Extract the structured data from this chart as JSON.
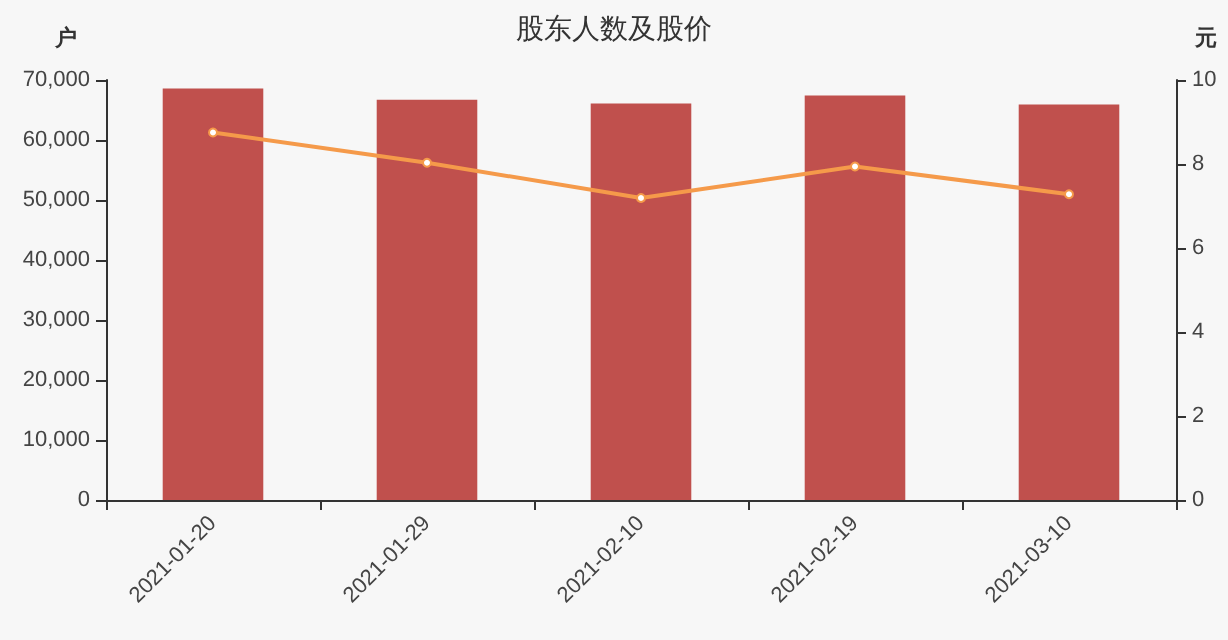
{
  "chart_data": {
    "type": "bar",
    "title": "股东人数及股价",
    "ylabel": "户",
    "y2label": "元",
    "categories": [
      "2021-01-20",
      "2021-01-29",
      "2021-02-10",
      "2021-02-19",
      "2021-03-10"
    ],
    "series": [
      {
        "color": "#c0504d",
        "values": [
          68600,
          66700,
          66100,
          67400,
          65900
        ]
      },
      {
        "type": "line",
        "axis": "y2",
        "color": "#f59a4a",
        "values": [
          8.75,
          8.03,
          7.19,
          7.94,
          7.28
        ]
      }
    ],
    "ylim": [
      0,
      70000
    ],
    "yticks": [
      0,
      {
        "value": 10000,
        "label": "10,000"
      },
      {
        "value": 20000,
        "label": "20,000"
      },
      {
        "value": 30000,
        "label": "30,000"
      },
      {
        "value": 40000,
        "label": "40,000"
      },
      {
        "value": 50000,
        "label": "50,000"
      },
      {
        "value": 60000,
        "label": "60,000"
      },
      {
        "value": 70000,
        "label": "70,000"
      }
    ],
    "y2lim": [
      0,
      10
    ],
    "y2ticks": [
      0,
      2,
      4,
      6,
      8,
      10
    ],
    "grid": false,
    "marker": "circle",
    "line_style": "solid"
  }
}
